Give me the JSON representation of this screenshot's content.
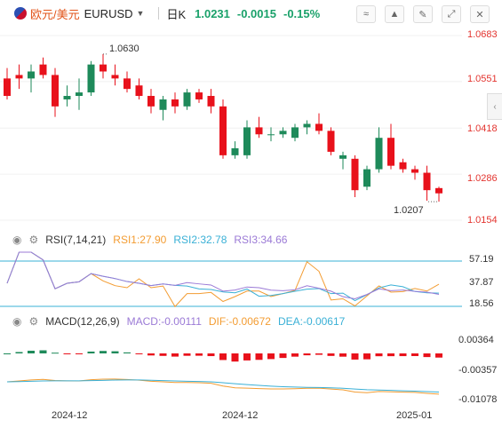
{
  "header": {
    "pair_name": "欧元/美元",
    "symbol": "EURUSD",
    "period": "日K",
    "last_price": "1.0231",
    "change": "-0.0015",
    "change_pct": "-0.15%",
    "price_color": "#1aa16a"
  },
  "toolbar_icons": [
    "drawing-icon",
    "indicator-icon",
    "tool-icon",
    "expand-icon",
    "close-icon"
  ],
  "main_chart": {
    "y_ticks": [
      "1.0683",
      "1.0551",
      "1.0418",
      "1.0286",
      "1.0154"
    ],
    "high_label": "1.0630",
    "low_label": "1.0207",
    "up_color": "#1e8a5a",
    "down_color": "#e8111b"
  },
  "rsi": {
    "title": "RSI(7,14,21)",
    "rsi1": "RSI1:27.90",
    "rsi2": "RSI2:32.78",
    "rsi3": "RSI3:34.66",
    "y_ticks": [
      "57.19",
      "37.87",
      "18.56"
    ],
    "colors": {
      "rsi1": "#f39c32",
      "rsi2": "#3ab0d6",
      "rsi3": "#9b7ad6"
    }
  },
  "macd": {
    "title": "MACD(12,26,9)",
    "macd": "MACD:-0.00111",
    "dif": "DIF:-0.00672",
    "dea": "DEA:-0.00617",
    "y_ticks": [
      "0.00364",
      "-0.00357",
      "-0.01078"
    ],
    "colors": {
      "macd": "#9b7ad6",
      "dif": "#f39c32",
      "dea": "#3ab0d6"
    }
  },
  "x_ticks": [
    "2024-12",
    "2024-12",
    "2025-01"
  ],
  "chart_data": {
    "type": "candlestick",
    "y_range": [
      1.0154,
      1.0683
    ],
    "candles": [
      [
        1.056,
        1.059,
        1.05,
        1.051
      ],
      [
        1.057,
        1.06,
        1.053,
        1.056
      ],
      [
        1.056,
        1.06,
        1.052,
        1.058
      ],
      [
        1.06,
        1.062,
        1.056,
        1.057
      ],
      [
        1.057,
        1.059,
        1.045,
        1.048
      ],
      [
        1.05,
        1.054,
        1.048,
        1.051
      ],
      [
        1.051,
        1.056,
        1.047,
        1.052
      ],
      [
        1.052,
        1.061,
        1.051,
        1.06
      ],
      [
        1.06,
        1.063,
        1.056,
        1.058
      ],
      [
        1.057,
        1.06,
        1.054,
        1.056
      ],
      [
        1.056,
        1.058,
        1.052,
        1.053
      ],
      [
        1.054,
        1.056,
        1.05,
        1.051
      ],
      [
        1.051,
        1.053,
        1.046,
        1.048
      ],
      [
        1.047,
        1.051,
        1.044,
        1.05
      ],
      [
        1.05,
        1.052,
        1.046,
        1.048
      ],
      [
        1.048,
        1.053,
        1.047,
        1.052
      ],
      [
        1.052,
        1.053,
        1.049,
        1.05
      ],
      [
        1.051,
        1.053,
        1.046,
        1.048
      ],
      [
        1.048,
        1.05,
        1.033,
        1.034
      ],
      [
        1.034,
        1.038,
        1.033,
        1.036
      ],
      [
        1.034,
        1.044,
        1.033,
        1.042
      ],
      [
        1.042,
        1.045,
        1.039,
        1.04
      ],
      [
        1.04,
        1.042,
        1.038,
        1.04
      ],
      [
        1.04,
        1.042,
        1.039,
        1.041
      ],
      [
        1.039,
        1.043,
        1.038,
        1.042
      ],
      [
        1.042,
        1.044,
        1.04,
        1.043
      ],
      [
        1.043,
        1.046,
        1.04,
        1.041
      ],
      [
        1.041,
        1.042,
        1.034,
        1.035
      ],
      [
        1.033,
        1.035,
        1.03,
        1.034
      ],
      [
        1.033,
        1.034,
        1.022,
        1.024
      ],
      [
        1.025,
        1.031,
        1.024,
        1.03
      ],
      [
        1.03,
        1.042,
        1.029,
        1.039
      ],
      [
        1.039,
        1.043,
        1.03,
        1.031
      ],
      [
        1.032,
        1.033,
        1.029,
        1.03
      ],
      [
        1.03,
        1.031,
        1.027,
        1.029
      ],
      [
        1.029,
        1.031,
        1.021,
        1.024
      ],
      [
        1.0246,
        1.025,
        1.0207,
        1.0231
      ]
    ]
  }
}
